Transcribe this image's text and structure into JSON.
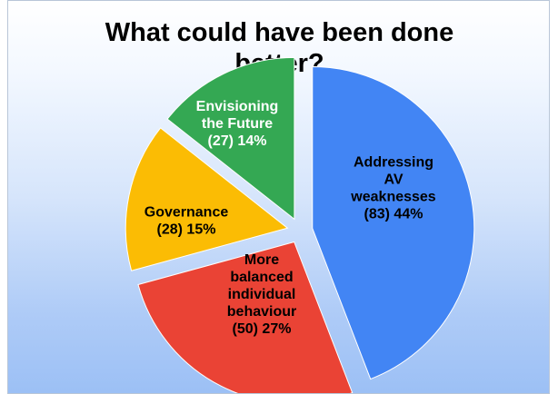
{
  "chart_data": {
    "type": "pie",
    "title_lines": [
      "What could have been done",
      "better?"
    ],
    "slices": [
      {
        "lines": [
          "Addressing",
          "AV",
          "weaknesses",
          "(83) 44%"
        ],
        "value": 83,
        "percent": 44,
        "color": "#4285f4",
        "text_color": "#000000"
      },
      {
        "lines": [
          "More",
          "balanced",
          "individual",
          "behaviour",
          "(50) 27%"
        ],
        "value": 50,
        "percent": 27,
        "color": "#ea4335",
        "text_color": "#000000"
      },
      {
        "lines": [
          "Governance",
          "(28) 15%"
        ],
        "value": 28,
        "percent": 15,
        "color": "#fbbc04",
        "text_color": "#000000"
      },
      {
        "lines": [
          "Envisioning",
          "the Future",
          "(27) 14%"
        ],
        "value": 27,
        "percent": 14,
        "color": "#34a853",
        "text_color": "#ffffff"
      }
    ],
    "exploded": true,
    "legend": "none"
  }
}
